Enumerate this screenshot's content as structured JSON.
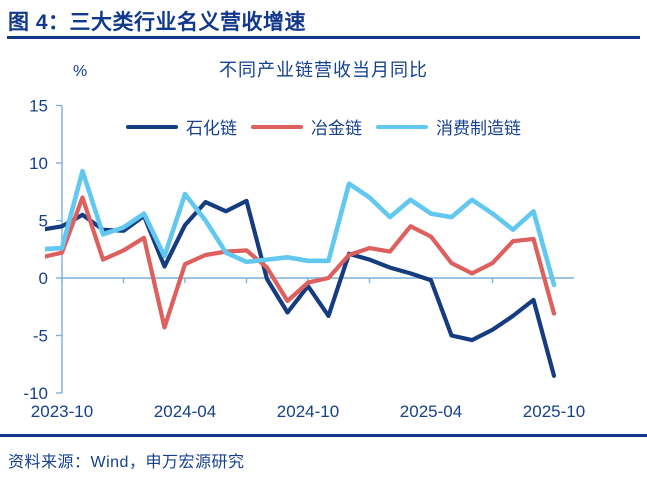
{
  "header": {
    "title": "图 4：三大类行业名义营收增速"
  },
  "chart": {
    "title": "不同产业链营收当月同比",
    "unit": "%"
  },
  "source": "资料来源：Wind，申万宏源研究",
  "colors": {
    "text_blue": "#15408f",
    "header_blue": "#12388c",
    "axis_blue": "#7fb0d8",
    "series_petrochemical": "#163c80",
    "series_metallurgy": "#dd5f5e",
    "series_consumer": "#62c8f0"
  },
  "chart_data": {
    "type": "line",
    "title": "不同产业链营收当月同比",
    "ylabel": "%",
    "ylim": [
      -10,
      15
    ],
    "grid": false,
    "legend_position": "top",
    "y_ticks": [
      15,
      10,
      5,
      0,
      -5,
      -10
    ],
    "x_axis_tick_interval_months": 3,
    "x_labels": [
      "2023-10",
      "2024-04",
      "2024-10",
      "2025-04",
      "2025-10"
    ],
    "x": [
      "2023-09",
      "2023-10",
      "2023-11",
      "2023-12",
      "2024-01",
      "2024-02",
      "2024-03",
      "2024-04",
      "2024-05",
      "2024-06",
      "2024-07",
      "2024-08",
      "2024-09",
      "2024-10",
      "2024-11",
      "2024-12",
      "2025-01",
      "2025-02",
      "2025-03",
      "2025-04",
      "2025-05",
      "2025-06",
      "2025-07",
      "2025-08",
      "2025-09",
      "2025-10"
    ],
    "series": [
      {
        "name": "石化链",
        "color": "#163c80",
        "values": [
          4.2,
          4.5,
          5.5,
          4.2,
          4.1,
          5.4,
          1.0,
          4.6,
          6.6,
          5.8,
          6.7,
          -0.1,
          -3.0,
          -0.7,
          -3.3,
          2.1,
          1.6,
          0.9,
          0.4,
          -0.2,
          -5.0,
          -5.4,
          -4.5,
          -3.3,
          -1.9,
          -8.5
        ]
      },
      {
        "name": "冶金链",
        "color": "#dd5f5e",
        "values": [
          1.8,
          2.2,
          7.0,
          1.6,
          2.4,
          3.5,
          -4.3,
          1.2,
          2.0,
          2.3,
          2.4,
          0.9,
          -2.0,
          -0.4,
          0.0,
          2.0,
          2.6,
          2.3,
          4.5,
          3.6,
          1.3,
          0.4,
          1.3,
          3.2,
          3.4,
          -3.1
        ]
      },
      {
        "name": "消费制造链",
        "color": "#62c8f0",
        "values": [
          2.5,
          2.6,
          9.3,
          3.8,
          4.4,
          5.6,
          1.9,
          7.3,
          5.0,
          2.2,
          1.4,
          1.6,
          1.8,
          1.5,
          1.5,
          8.2,
          7.0,
          5.3,
          6.8,
          5.6,
          5.3,
          6.8,
          5.6,
          4.2,
          5.8,
          -0.6
        ]
      }
    ]
  }
}
